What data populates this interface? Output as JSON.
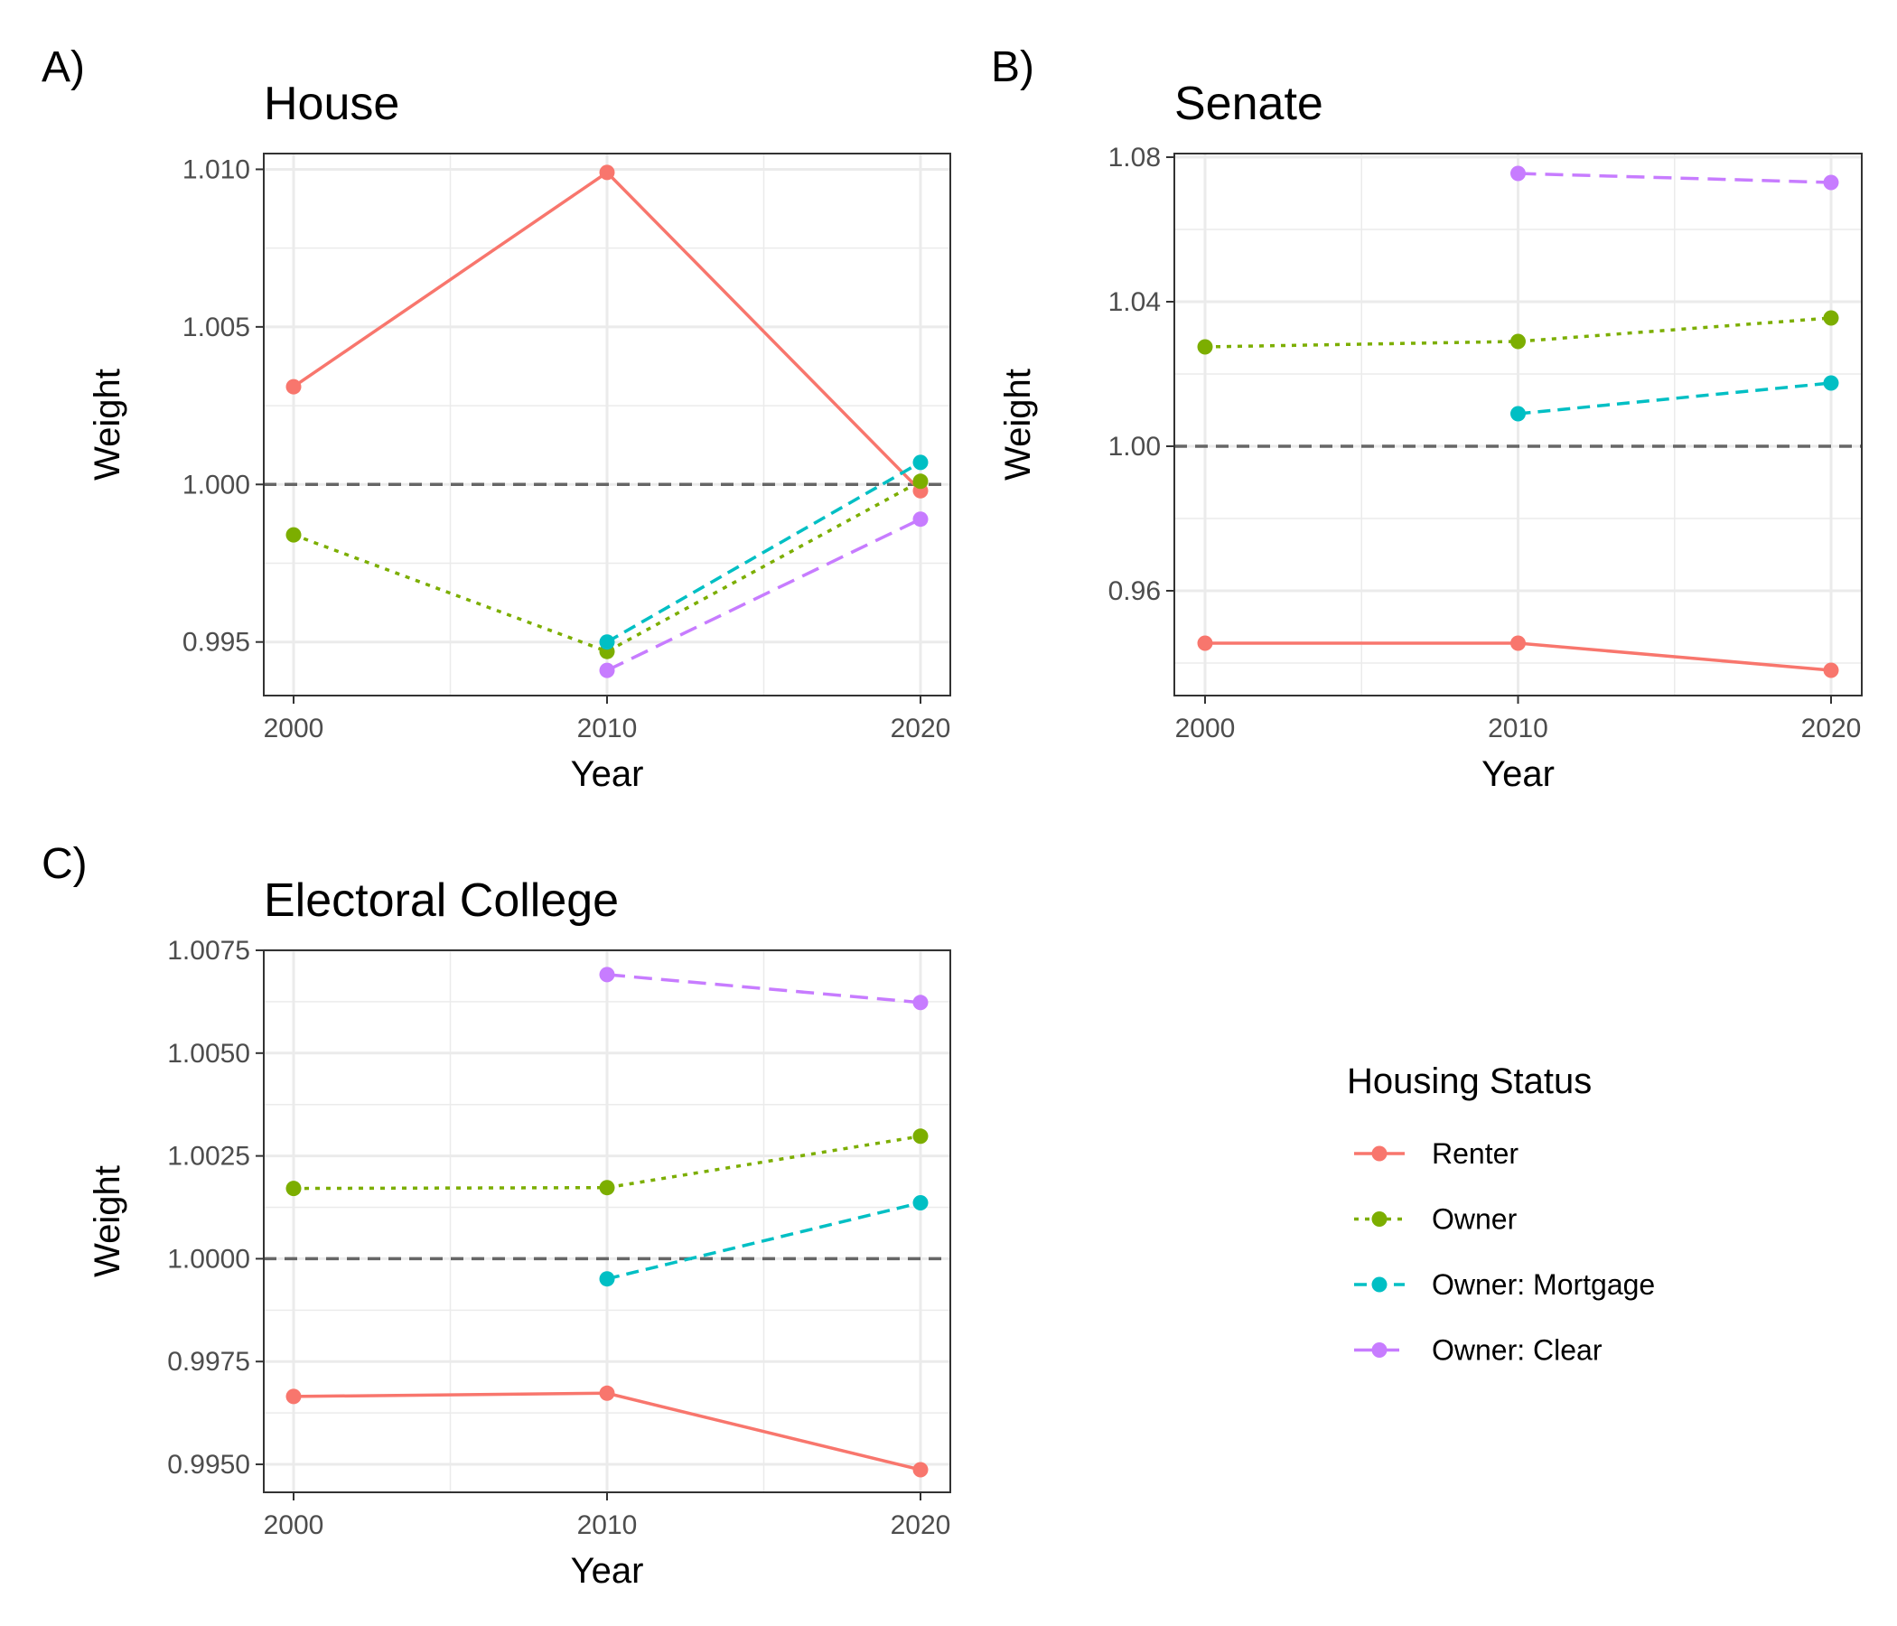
{
  "chart_data": [
    {
      "type": "line",
      "tag": "A)",
      "title": "House",
      "xlabel": "Year",
      "ylabel": "Weight",
      "x": [
        2000,
        2010,
        2020
      ],
      "xticks": [
        "2000",
        "2010",
        "2020"
      ],
      "ylim": [
        0.9933,
        1.0105
      ],
      "yticks": [
        0.995,
        1.0,
        1.005,
        1.01
      ],
      "ytick_labels": [
        "0.995",
        "1.000",
        "1.005",
        "1.010"
      ],
      "reference_line": 1.0,
      "grid": true,
      "series": [
        {
          "name": "Renter",
          "values": [
            1.0031,
            1.0099,
            0.9998
          ]
        },
        {
          "name": "Owner",
          "values": [
            0.9984,
            0.9947,
            1.0001
          ]
        },
        {
          "name": "Owner: Mortgage",
          "values": [
            null,
            0.995,
            1.0007
          ]
        },
        {
          "name": "Owner: Clear",
          "values": [
            null,
            0.9941,
            0.9989
          ]
        }
      ]
    },
    {
      "type": "line",
      "tag": "B)",
      "title": "Senate",
      "xlabel": "Year",
      "ylabel": "Weight",
      "x": [
        2000,
        2010,
        2020
      ],
      "xticks": [
        "2000",
        "2010",
        "2020"
      ],
      "ylim": [
        0.931,
        1.081
      ],
      "yticks": [
        0.96,
        1.0,
        1.04,
        1.08
      ],
      "ytick_labels": [
        "0.96",
        "1.00",
        "1.04",
        "1.08"
      ],
      "reference_line": 1.0,
      "grid": true,
      "series": [
        {
          "name": "Renter",
          "values": [
            0.9455,
            0.9455,
            0.938
          ]
        },
        {
          "name": "Owner",
          "values": [
            1.0275,
            1.029,
            1.0355
          ]
        },
        {
          "name": "Owner: Mortgage",
          "values": [
            null,
            1.009,
            1.0175
          ]
        },
        {
          "name": "Owner: Clear",
          "values": [
            null,
            1.0755,
            1.073
          ]
        }
      ]
    },
    {
      "type": "line",
      "tag": "C)",
      "title": "Electoral College",
      "xlabel": "Year",
      "ylabel": "Weight",
      "x": [
        2000,
        2010,
        2020
      ],
      "xticks": [
        "2000",
        "2010",
        "2020"
      ],
      "ylim": [
        0.99432,
        1.0075
      ],
      "yticks": [
        0.995,
        0.9975,
        1.0,
        1.0025,
        1.005,
        1.0075
      ],
      "ytick_labels": [
        "0.9950",
        "0.9975",
        "1.0000",
        "1.0025",
        "1.0050",
        "1.0075"
      ],
      "reference_line": 1.0,
      "grid": true,
      "series": [
        {
          "name": "Renter",
          "values": [
            0.99665,
            0.99673,
            0.99487
          ]
        },
        {
          "name": "Owner",
          "values": [
            1.00171,
            1.00173,
            1.00298
          ]
        },
        {
          "name": "Owner: Mortgage",
          "values": [
            null,
            0.99951,
            1.00136
          ]
        },
        {
          "name": "Owner: Clear",
          "values": [
            null,
            1.00691,
            1.00623
          ]
        }
      ]
    }
  ],
  "legend": {
    "title": "Housing Status",
    "placement": "bottom-right",
    "items": [
      {
        "name": "Renter",
        "color": "#F8766D",
        "dash": "solid"
      },
      {
        "name": "Owner",
        "color": "#7CAE00",
        "dash": "dotted"
      },
      {
        "name": "Owner: Mortgage",
        "color": "#00BFC4",
        "dash": "dashed"
      },
      {
        "name": "Owner: Clear",
        "color": "#C77CFF",
        "dash": "longdash"
      }
    ]
  }
}
